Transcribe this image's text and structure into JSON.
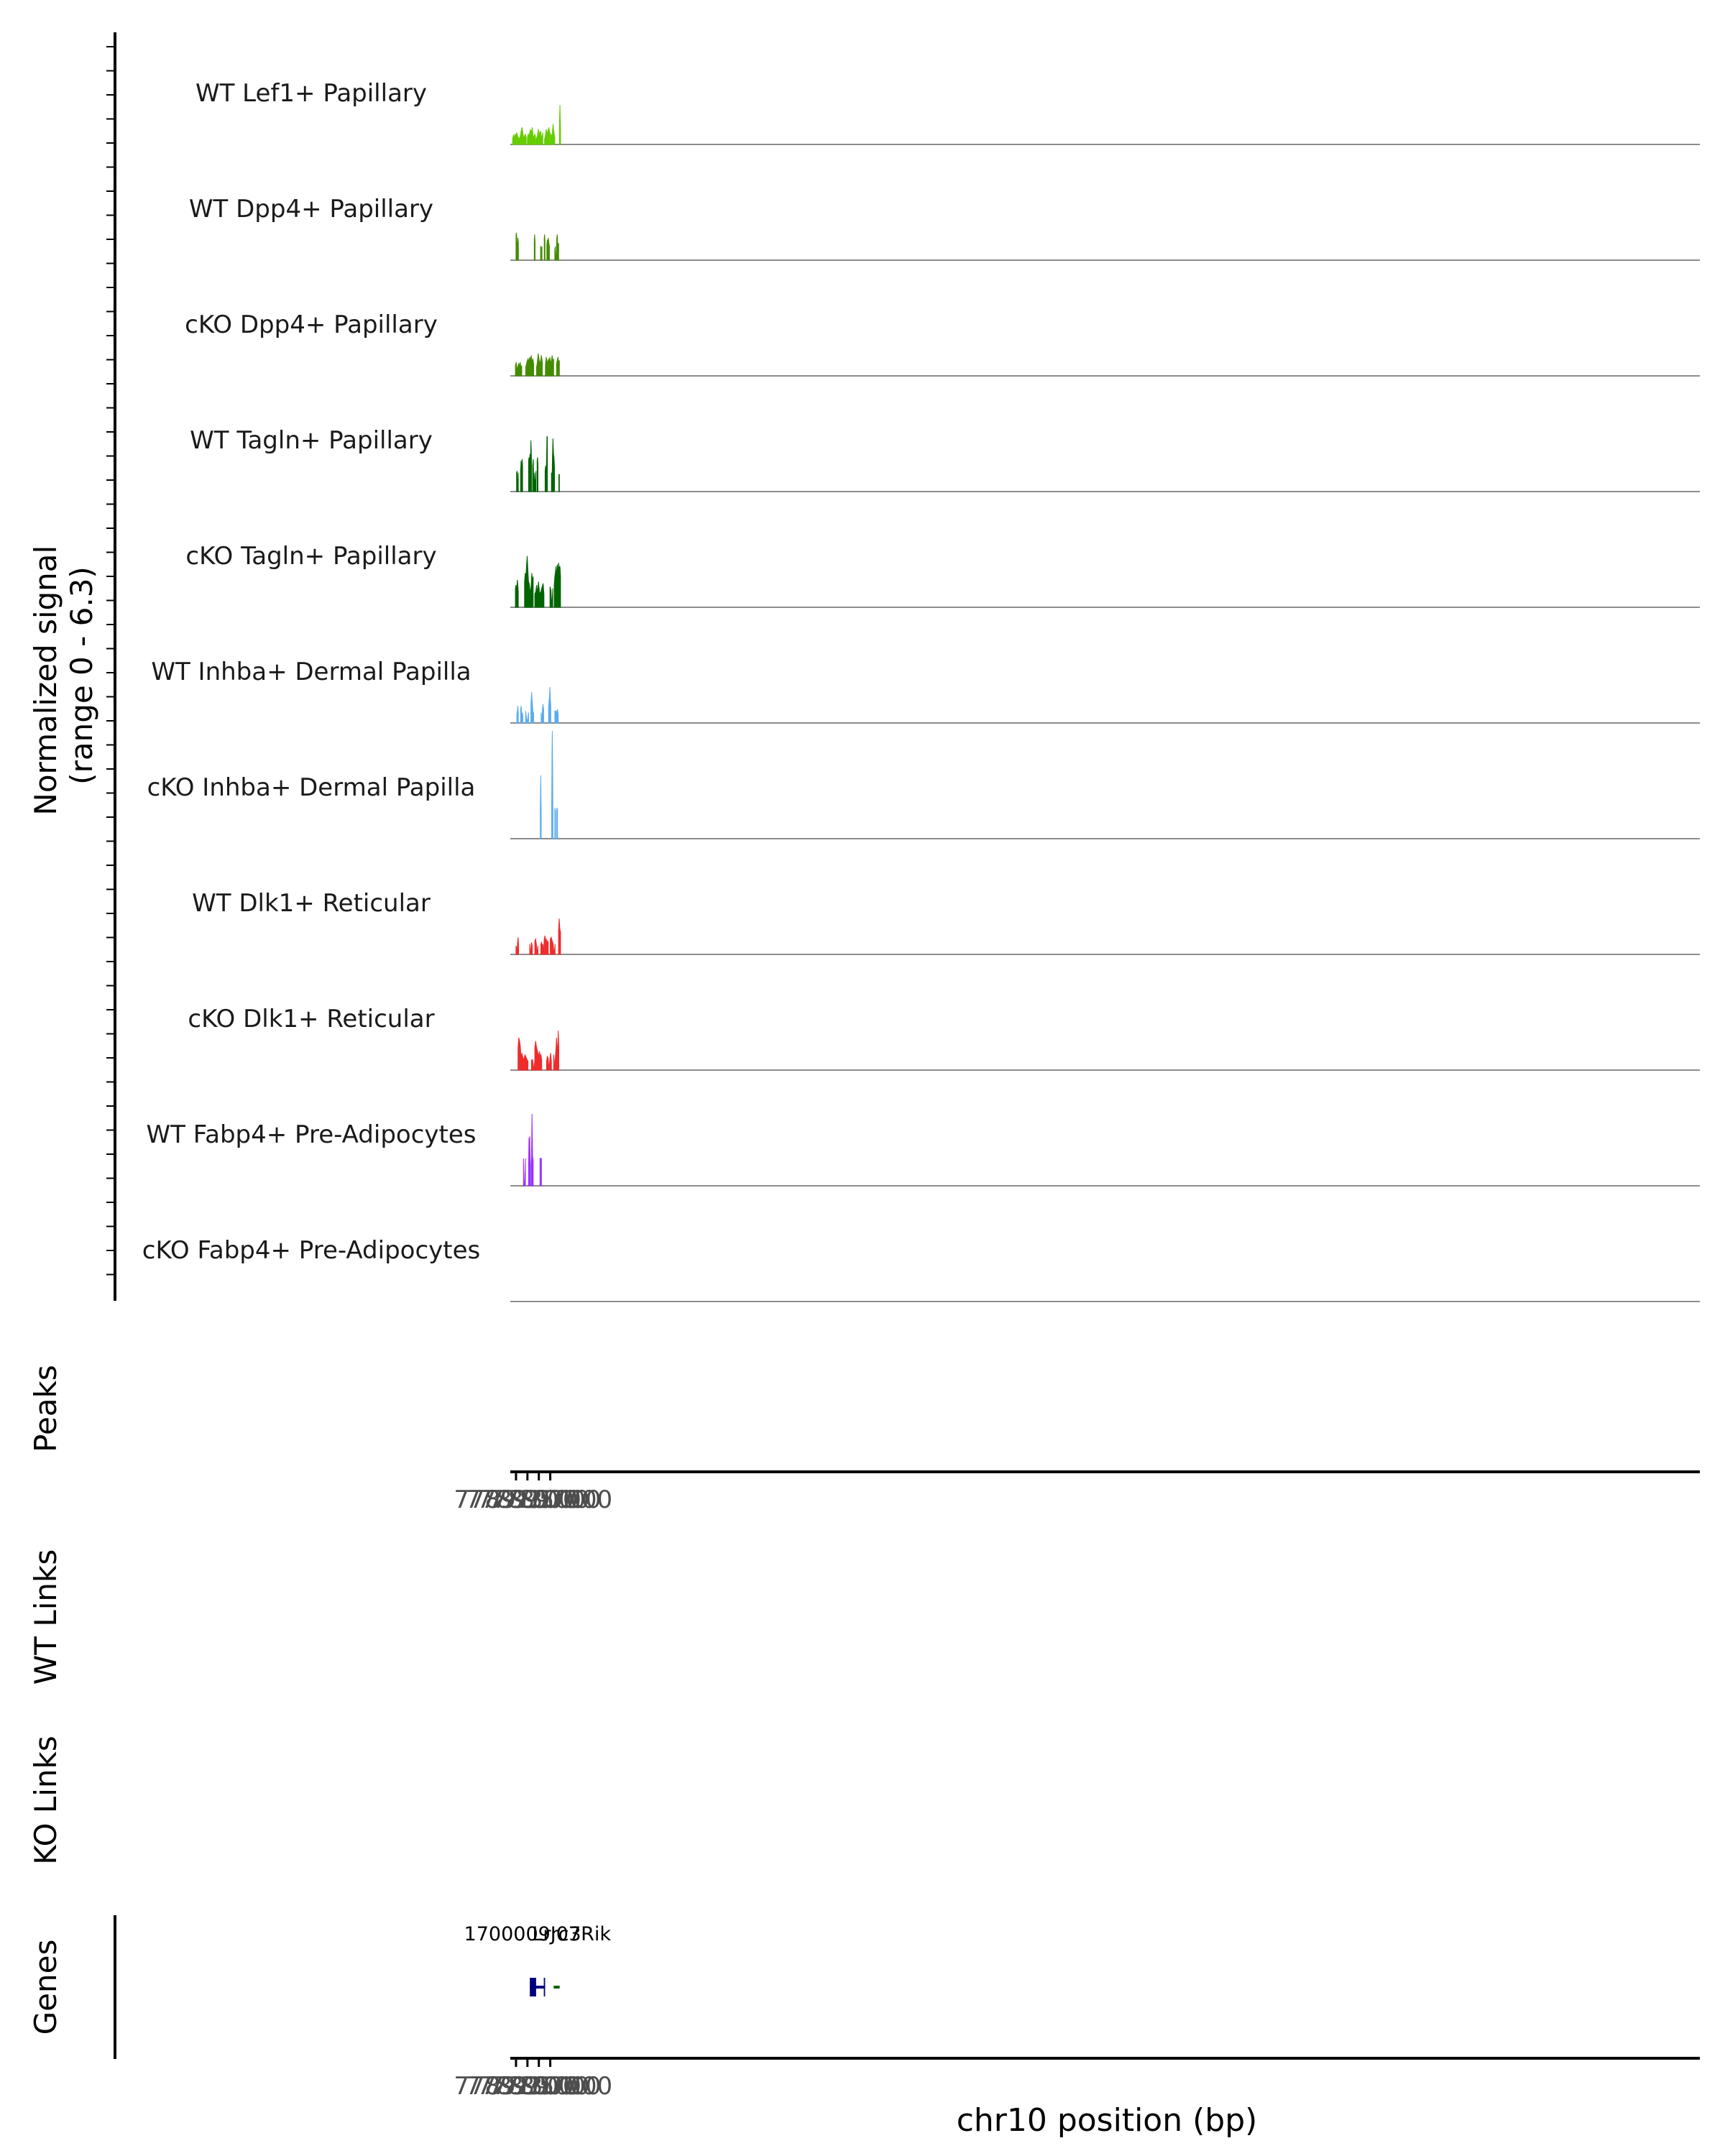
{
  "chart_data": {
    "type": "area",
    "title": "",
    "signal_axis_label": [
      "Normalized signal",
      "(range 0 - 6.3)"
    ],
    "signal_range": [
      0,
      6.3
    ],
    "x_range": [
      77890000,
      78098500
    ],
    "x_tick_labels": [
      "77891000",
      "77893000",
      "77895000",
      "77897000"
    ],
    "x_ticks": [
      77891000,
      77893000,
      77895000,
      77897000
    ],
    "xlabel": "chr10 position (bp)",
    "track_labels": {
      "peaks": "Peaks",
      "wt_links": "WT Links",
      "ko_links": "KO Links",
      "genes": "Genes"
    },
    "series": [
      {
        "name": "WT Lef1+ Papillary",
        "color": "#66CD00",
        "segments": [
          [
            77890400,
            77892800,
            [
              0.35,
              0.55,
              0.4,
              0.6,
              0.5,
              0.7,
              0.45,
              0.4,
              0.3,
              0.5,
              0.8,
              1.0,
              0.7,
              0.3,
              0.5,
              0.6,
              0.4
            ]
          ],
          [
            77893000,
            77894400,
            [
              0.4,
              0.6,
              0.5,
              0.7,
              0.9,
              0.6,
              1.0,
              0.5,
              0.4,
              0.6,
              0.5
            ]
          ],
          [
            77894500,
            77895700,
            [
              0.3,
              0.4,
              0.5,
              0.9,
              0.7,
              0.6,
              0.8,
              0.5,
              0.4,
              0.7
            ]
          ],
          [
            77896000,
            77897800,
            [
              0.3,
              0.5,
              0.9,
              0.6,
              0.8,
              1.0,
              0.7,
              0.6,
              0.5,
              0.6,
              1.2,
              0.7,
              0.4
            ]
          ],
          [
            77898600,
            77898800,
            [
              1.0,
              1.8,
              2.3,
              1.5,
              0.8
            ]
          ]
        ]
      },
      {
        "name": "WT Dpp4+ Papillary",
        "color": "#458B00",
        "segments": [
          [
            77891000,
            77891140,
            [
              1.5,
              1.6,
              1.3
            ]
          ],
          [
            77891250,
            77891420,
            [
              1.0,
              1.3,
              1.0
            ]
          ],
          [
            77894200,
            77894350,
            [
              1.2,
              1.5,
              1.0
            ]
          ],
          [
            77895300,
            77895560,
            [
              0.8,
              0.8,
              0.0,
              0.8
            ]
          ],
          [
            77895950,
            77896080,
            [
              1.3,
              1.5,
              1.1
            ]
          ],
          [
            77896400,
            77896850,
            [
              0.9,
              1.2,
              0.9,
              1.3,
              1.0,
              0.8
            ]
          ],
          [
            77897800,
            77898480,
            [
              0.6,
              0.8,
              0.0,
              0.0,
              1.3,
              1.5,
              0.9,
              0.8,
              1.0
            ]
          ]
        ]
      },
      {
        "name": "cKO Dpp4+ Papillary",
        "color": "#458B00",
        "segments": [
          [
            77890900,
            77892000,
            [
              0.6,
              0.8,
              0.4,
              0.5,
              0.7,
              0.6,
              0.8,
              0.5,
              0.6
            ]
          ],
          [
            77892700,
            77894100,
            [
              0.5,
              0.7,
              0.9,
              1.0,
              0.8,
              1.1,
              0.9,
              1.2,
              0.8,
              1.0,
              0.7
            ]
          ],
          [
            77894600,
            77895600,
            [
              0.5,
              0.8,
              1.3,
              1.0,
              0.7,
              0.9,
              1.2,
              0.8
            ]
          ],
          [
            77896150,
            77897600,
            [
              0.6,
              1.1,
              0.9,
              0.7,
              1.0,
              0.8,
              1.1,
              0.7,
              0.9,
              1.2,
              0.8,
              1.0
            ]
          ],
          [
            77898100,
            77898600,
            [
              0.7,
              0.9,
              1.1,
              0.8,
              0.9
            ]
          ]
        ]
      },
      {
        "name": "WT Tagln+ Papillary",
        "color": "#006400",
        "segments": [
          [
            77891100,
            77891400,
            [
              1.1,
              1.2,
              0.0,
              1.1
            ]
          ],
          [
            77891800,
            77892150,
            [
              1.2,
              1.8,
              1.3,
              1.9,
              1.5
            ]
          ],
          [
            77893200,
            77893700,
            [
              1.8,
              2.0,
              1.6,
              2.2,
              1.7,
              3.0,
              2.0
            ]
          ],
          [
            77893900,
            77894500,
            [
              1.5,
              1.9,
              0.0,
              1.1,
              0.0,
              1.2
            ]
          ],
          [
            77894700,
            77894850,
            [
              1.8,
              2.0,
              1.5
            ]
          ],
          [
            77896100,
            77896500,
            [
              1.2,
              1.5,
              1.3,
              1.6,
              3.2,
              3.2
            ]
          ],
          [
            77897200,
            77897750,
            [
              1.1,
              0.0,
              2.0,
              3.1,
              2.2,
              2.0,
              1.4
            ]
          ],
          [
            77898500,
            77898600,
            [
              1.0,
              1.0
            ]
          ]
        ]
      },
      {
        "name": "cKO Tagln+ Papillary",
        "color": "#006400",
        "segments": [
          [
            77890900,
            77891400,
            [
              1.1,
              1.3,
              0.9,
              1.2,
              1.6,
              1.3,
              0.9
            ]
          ],
          [
            77892500,
            77894000,
            [
              1.5,
              2.0,
              1.7,
              2.5,
              3.0,
              2.2,
              1.5,
              1.4,
              1.0,
              0.9,
              1.3,
              2.0,
              1.5,
              1.8
            ]
          ],
          [
            77894300,
            77895900,
            [
              0.8,
              0.9,
              1.3,
              0.8,
              1.5,
              0.9,
              0.8,
              1.0,
              1.2,
              1.4,
              0.8
            ]
          ],
          [
            77896950,
            77897450,
            [
              1.2,
              1.0,
              0.0,
              1.1
            ]
          ],
          [
            77897700,
            77898800,
            [
              1.3,
              1.8,
              2.1,
              2.4,
              1.7,
              2.5,
              1.9,
              2.6,
              2.2,
              2.4,
              1.8
            ]
          ]
        ]
      },
      {
        "name": "WT Inhba+ Dermal Papilla",
        "color": "#5CACEE",
        "segments": [
          [
            77891150,
            77891400,
            [
              0.5,
              0.7,
              1.0,
              0.6
            ]
          ],
          [
            77891800,
            77892200,
            [
              0.8,
              1.0,
              0.5,
              0.6,
              0.4
            ]
          ],
          [
            77892700,
            77893200,
            [
              0.7,
              0.0,
              0.6
            ]
          ],
          [
            77893600,
            77894100,
            [
              1.0,
              1.8,
              1.2,
              0.6,
              0.6
            ]
          ],
          [
            77895400,
            77895850,
            [
              0.6,
              0.0,
              0.8,
              1.1,
              0.8
            ]
          ],
          [
            77896700,
            77897100,
            [
              0.9,
              1.3,
              1.6,
              2.1,
              1.4,
              1.0
            ]
          ],
          [
            77897800,
            77898400,
            [
              0.7,
              0.7,
              0.6,
              0.8,
              0.5
            ]
          ]
        ]
      },
      {
        "name": "cKO Inhba+ Dermal Papilla",
        "color": "#5CACEE",
        "segments": [
          [
            77895250,
            77895420,
            [
              1.8,
              3.7,
              1.6
            ]
          ],
          [
            77897250,
            77897470,
            [
              1.6,
              5.0,
              6.3,
              4.2,
              1.4
            ]
          ],
          [
            77897800,
            77897950,
            [
              1.8,
              1.6
            ]
          ],
          [
            77898150,
            77898280,
            [
              1.8,
              1.7
            ]
          ]
        ]
      },
      {
        "name": "WT Dlk1+ Reticular",
        "color": "#EE2C2C",
        "segments": [
          [
            77891000,
            77891450,
            [
              0.5,
              0.4,
              0.0,
              0.7,
              1.0,
              0.6
            ]
          ],
          [
            77893400,
            77893850,
            [
              0.6,
              0.0,
              0.7,
              0.5
            ]
          ],
          [
            77894300,
            77894850,
            [
              0.8,
              0.9,
              0.6,
              0.0,
              0.5
            ]
          ],
          [
            77895350,
            77896650,
            [
              0.6,
              0.7,
              0.5,
              0.6,
              0.0,
              0.9,
              1.1,
              0.8,
              0.9,
              0.6,
              0.8,
              0.7
            ]
          ],
          [
            77897000,
            77897850,
            [
              0.9,
              1.0,
              0.8,
              0.6,
              0.0,
              0.6
            ]
          ],
          [
            77898450,
            77898800,
            [
              1.4,
              2.1,
              1.5,
              1.3
            ]
          ]
        ]
      },
      {
        "name": "cKO Dlk1+ Reticular",
        "color": "#EE2C2C",
        "segments": [
          [
            77891350,
            77893100,
            [
              1.3,
              1.9,
              1.7,
              1.4,
              0.7,
              1.0,
              0.8,
              0.6,
              0.7,
              0.9,
              0.8,
              0.7,
              0.6,
              0.5
            ]
          ],
          [
            77893700,
            77894550,
            [
              0.6,
              0.6,
              0.0,
              0.7,
              0.8
            ]
          ],
          [
            77894300,
            77895500,
            [
              1.3,
              1.7,
              1.4,
              1.2,
              1.0,
              0.8,
              1.1,
              0.8,
              0.9,
              0.6
            ]
          ],
          [
            77896350,
            77897200,
            [
              0.5,
              0.8,
              0.7,
              0.0,
              0.6,
              1.0,
              0.5
            ]
          ],
          [
            77897600,
            77898500,
            [
              0.9,
              0.6,
              0.0,
              0.8,
              1.2,
              1.9,
              1.3,
              1.1,
              2.3,
              1.4
            ]
          ]
        ]
      },
      {
        "name": "WT Fabp4+ Pre-Adipocytes",
        "color": "#9B30FF",
        "segments": [
          [
            77892300,
            77892650,
            [
              1.6,
              0.0,
              0.0,
              1.6
            ]
          ],
          [
            77893200,
            77893550,
            [
              1.3,
              2.8,
              1.5,
              2.9,
              1.6,
              1.2
            ]
          ],
          [
            77893700,
            77894000,
            [
              1.5,
              4.2,
              1.7,
              1.5
            ]
          ],
          [
            77895200,
            77895450,
            [
              1.6,
              1.6,
              1.6
            ]
          ]
        ]
      },
      {
        "name": "cKO Fabp4+ Pre-Adipocytes",
        "color": "#9B30FF",
        "segments": []
      }
    ],
    "genes": [
      {
        "name": "1700009J07Rik",
        "start": 77893420,
        "end": 77896100,
        "strand": "+",
        "color": "#000080",
        "exons": [
          [
            77893420,
            77894520
          ],
          [
            77895870,
            77896100
          ]
        ]
      },
      {
        "name": "Lrrc3",
        "start": 77897600,
        "end": 77898650,
        "strand": "-",
        "color": "#006400",
        "exons": []
      }
    ]
  }
}
